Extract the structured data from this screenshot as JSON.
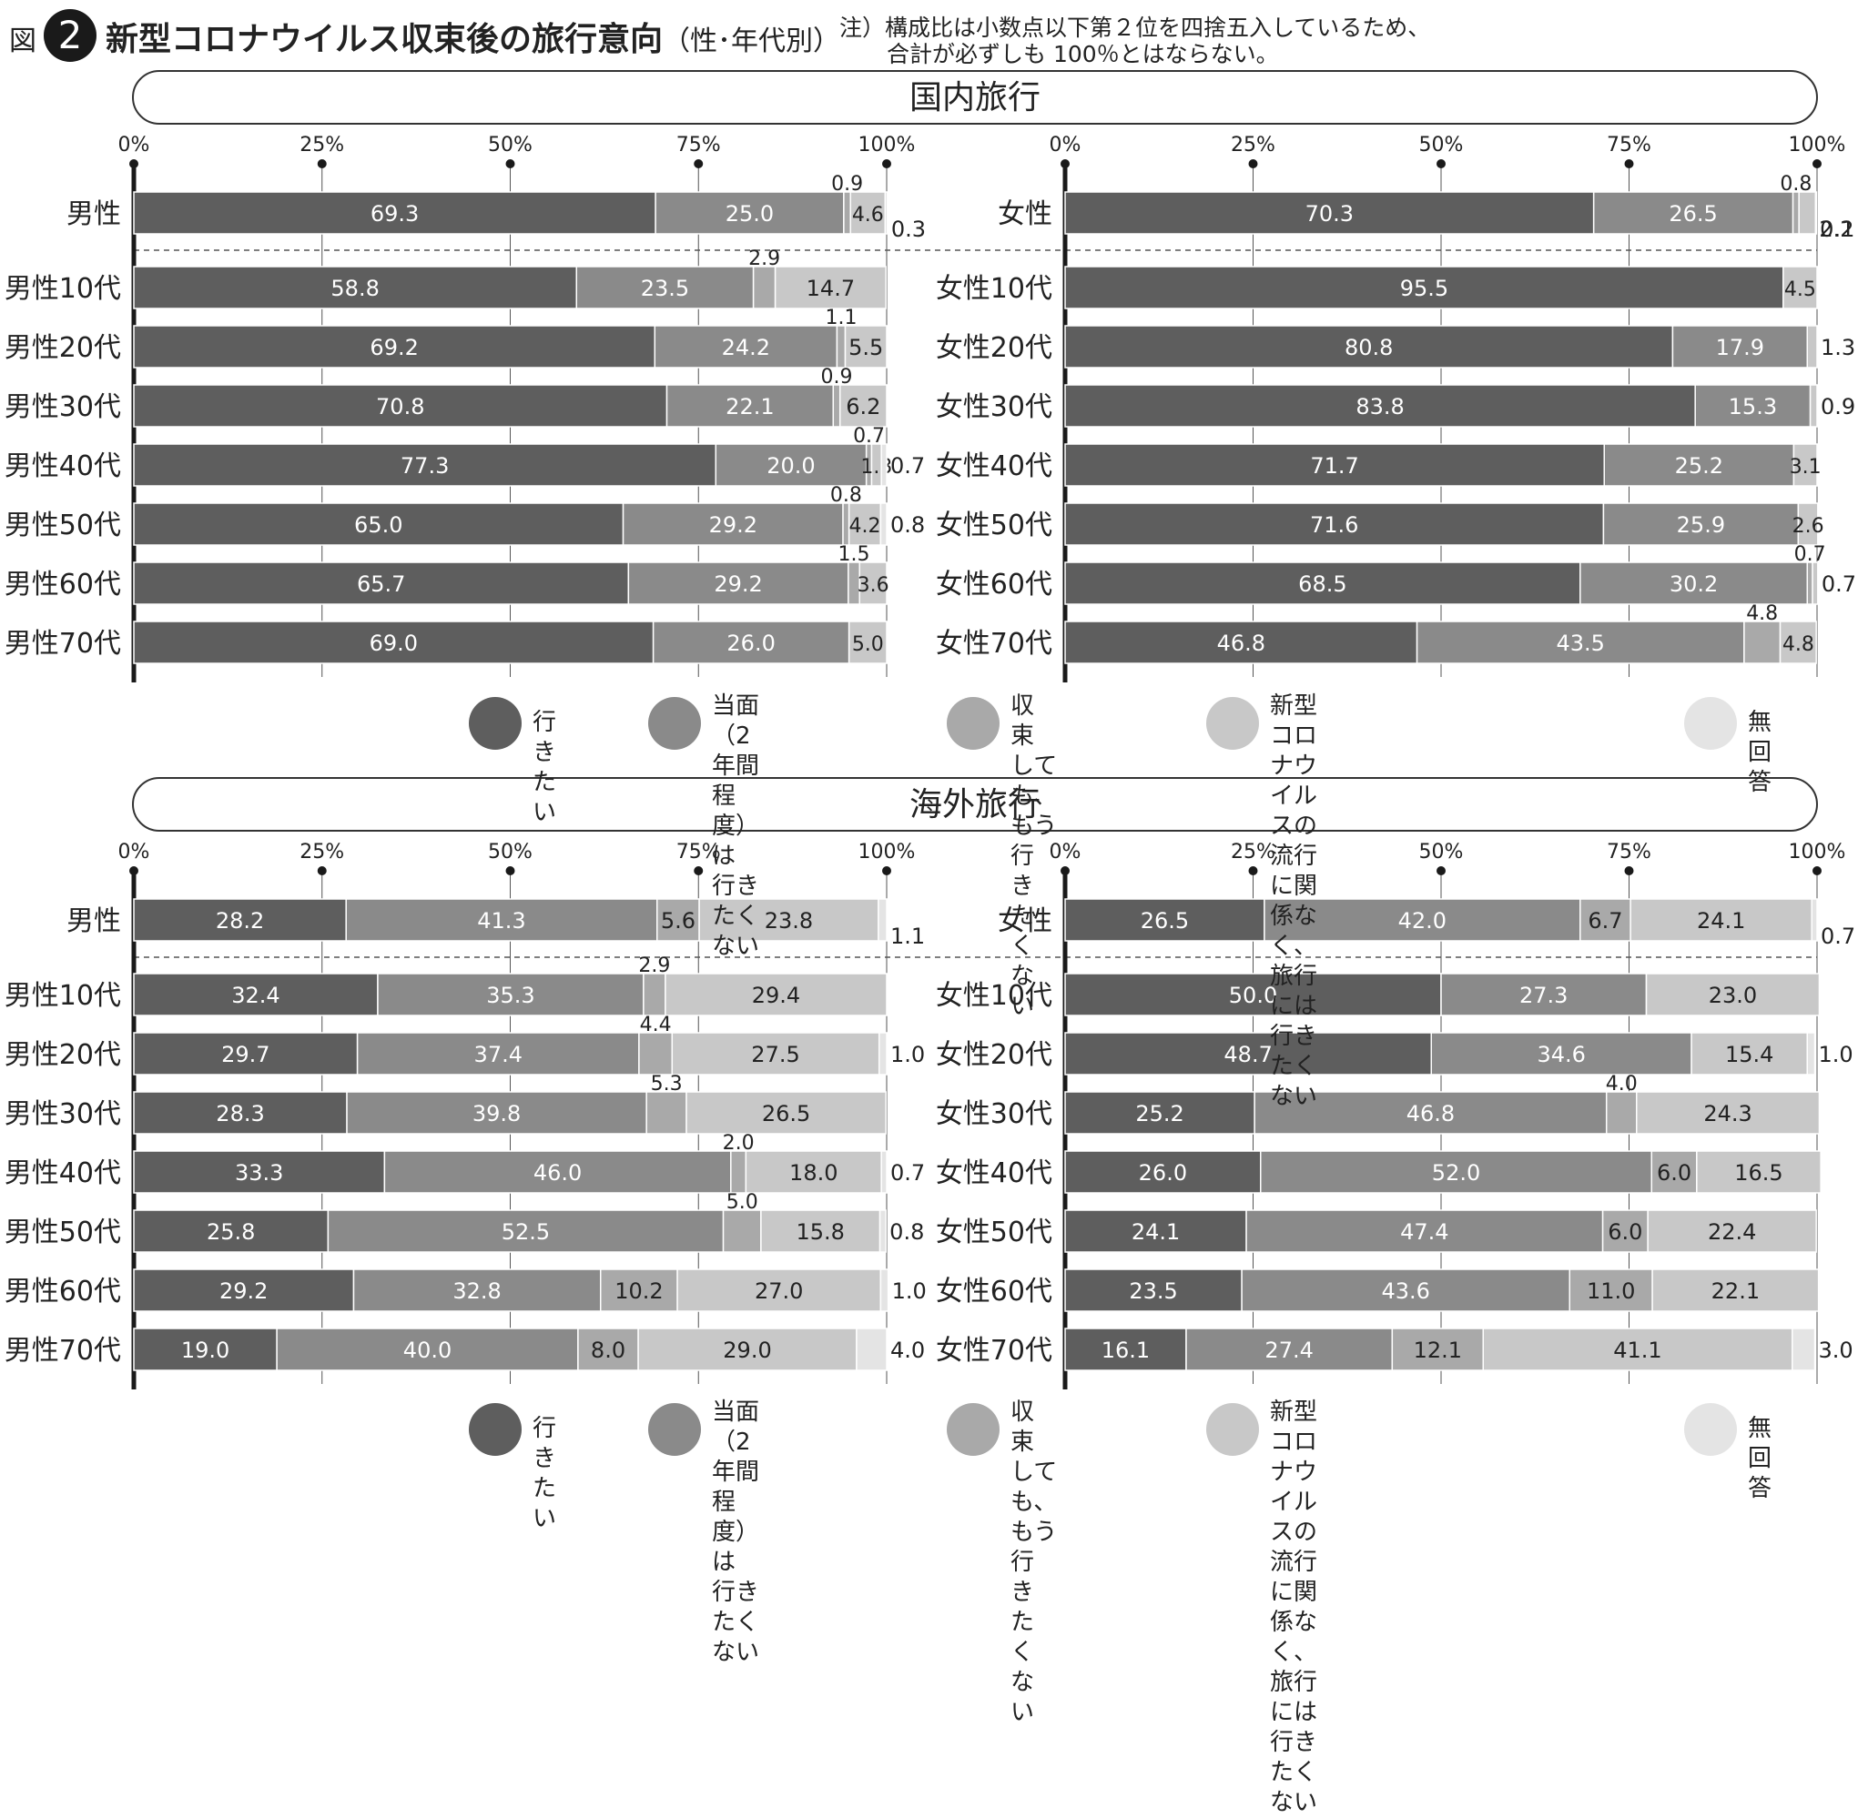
{
  "header": {
    "fig_label": "図",
    "fig_number": "2",
    "title": "新型コロナウイルス収束後の旅行意向",
    "title_sub": "（性･年代別）",
    "note_line1": "注）構成比は小数点以下第２位を四捨五入しているため、",
    "note_line2": "合計が必ずしも 100％とはならない。"
  },
  "legend": {
    "items": [
      {
        "label": "行きたい",
        "color": "#5e5e5e"
      },
      {
        "label": "当面（2年間程度）は\n行きたくない",
        "color": "#8a8a8a"
      },
      {
        "label": "収束しても、\nもう行きたくない",
        "color": "#a9a9a9"
      },
      {
        "label": "新型コロナウイルスの流行に関係なく、\n旅行には行きたくない",
        "color": "#c8c8c8"
      },
      {
        "label": "無回答",
        "color": "#e4e4e4"
      }
    ]
  },
  "chart_data": [
    {
      "type": "bar",
      "orientation": "horizontal",
      "stacked": true,
      "section": "国内旅行",
      "panel": "男性",
      "xlim": [
        0,
        100
      ],
      "ticks": [
        "0%",
        "25%",
        "50%",
        "75%",
        "100%"
      ],
      "categories": [
        "男性",
        "男性10代",
        "男性20代",
        "男性30代",
        "男性40代",
        "男性50代",
        "男性60代",
        "男性70代"
      ],
      "series": [
        {
          "name": "行きたい",
          "values": [
            69.3,
            58.8,
            69.2,
            70.8,
            77.3,
            65.0,
            65.7,
            69.0
          ]
        },
        {
          "name": "当面（2年間程度）は行きたくない",
          "values": [
            25.0,
            23.5,
            24.2,
            22.1,
            20.0,
            29.2,
            29.2,
            26.0
          ]
        },
        {
          "name": "収束しても、もう行きたくない",
          "values": [
            0.9,
            2.9,
            1.1,
            0.9,
            0.7,
            0.8,
            1.5,
            0
          ]
        },
        {
          "name": "新型コロナウイルスの流行に関係なく、旅行には行きたくない",
          "values": [
            4.6,
            14.7,
            5.5,
            6.2,
            1.3,
            4.2,
            3.6,
            5.0
          ]
        },
        {
          "name": "無回答",
          "values": [
            0.3,
            0,
            0,
            0,
            0.7,
            0.8,
            0,
            0
          ]
        }
      ],
      "labels": [
        [
          "69.3",
          "25.0",
          "0.9",
          "4.6",
          "0.3"
        ],
        [
          "58.8",
          "23.5",
          "2.9",
          "14.7",
          ""
        ],
        [
          "69.2",
          "24.2",
          "1.1",
          "5.5",
          ""
        ],
        [
          "70.8",
          "22.1",
          "0.9",
          "6.2",
          ""
        ],
        [
          "77.3",
          "20.0",
          "0.7",
          "1.3",
          "0.7"
        ],
        [
          "65.0",
          "29.2",
          "0.8",
          "4.2",
          "0.8"
        ],
        [
          "65.7",
          "29.2",
          "1.5",
          "3.6",
          ""
        ],
        [
          "69.0",
          "26.0",
          "",
          "5.0",
          ""
        ]
      ]
    },
    {
      "type": "bar",
      "orientation": "horizontal",
      "stacked": true,
      "section": "国内旅行",
      "panel": "女性",
      "xlim": [
        0,
        100
      ],
      "ticks": [
        "0%",
        "25%",
        "50%",
        "75%",
        "100%"
      ],
      "categories": [
        "女性",
        "女性10代",
        "女性20代",
        "女性30代",
        "女性40代",
        "女性50代",
        "女性60代",
        "女性70代"
      ],
      "series": [
        {
          "name": "行きたい",
          "values": [
            70.3,
            95.5,
            80.8,
            83.8,
            71.7,
            71.6,
            68.5,
            46.8
          ]
        },
        {
          "name": "当面（2年間程度）は行きたくない",
          "values": [
            26.5,
            0,
            17.9,
            15.3,
            25.2,
            25.9,
            30.2,
            43.5
          ]
        },
        {
          "name": "収束しても、もう行きたくない",
          "values": [
            0.8,
            0,
            0,
            0,
            0,
            0,
            0.7,
            4.8
          ]
        },
        {
          "name": "新型コロナウイルスの流行に関係なく、旅行には行きたくない",
          "values": [
            2.2,
            4.5,
            1.3,
            0.9,
            3.1,
            2.6,
            0.7,
            4.8
          ]
        },
        {
          "name": "無回答",
          "values": [
            0.1,
            0,
            0,
            0,
            0,
            0,
            0,
            0
          ]
        }
      ],
      "labels": [
        [
          "70.3",
          "26.5",
          "0.8",
          "2.2",
          "0.1"
        ],
        [
          "95.5",
          "",
          "",
          "4.5",
          ""
        ],
        [
          "80.8",
          "17.9",
          "",
          "1.3",
          ""
        ],
        [
          "83.8",
          "15.3",
          "",
          "0.9",
          ""
        ],
        [
          "71.7",
          "25.2",
          "",
          "3.1",
          ""
        ],
        [
          "71.6",
          "25.9",
          "",
          "2.6",
          ""
        ],
        [
          "68.5",
          "30.2",
          "0.7",
          "0.7",
          ""
        ],
        [
          "46.8",
          "43.5",
          "4.8",
          "4.8",
          ""
        ]
      ]
    },
    {
      "type": "bar",
      "orientation": "horizontal",
      "stacked": true,
      "section": "海外旅行",
      "panel": "男性",
      "xlim": [
        0,
        100
      ],
      "ticks": [
        "0%",
        "25%",
        "50%",
        "75%",
        "100%"
      ],
      "categories": [
        "男性",
        "男性10代",
        "男性20代",
        "男性30代",
        "男性40代",
        "男性50代",
        "男性60代",
        "男性70代"
      ],
      "series": [
        {
          "name": "行きたい",
          "values": [
            28.2,
            32.4,
            29.7,
            28.3,
            33.3,
            25.8,
            29.2,
            19.0
          ]
        },
        {
          "name": "当面（2年間程度）は行きたくない",
          "values": [
            41.3,
            35.3,
            37.4,
            39.8,
            46.0,
            52.5,
            32.8,
            40.0
          ]
        },
        {
          "name": "収束しても、もう行きたくない",
          "values": [
            5.6,
            2.9,
            4.4,
            5.3,
            2.0,
            5.0,
            10.2,
            8.0
          ]
        },
        {
          "name": "新型コロナウイルスの流行に関係なく、旅行には行きたくない",
          "values": [
            23.8,
            29.4,
            27.5,
            26.5,
            18.0,
            15.8,
            27.0,
            29.0
          ]
        },
        {
          "name": "無回答",
          "values": [
            1.1,
            0,
            1.0,
            0,
            0.7,
            0.8,
            1.0,
            4.0
          ]
        }
      ],
      "labels": [
        [
          "28.2",
          "41.3",
          "5.6",
          "23.8",
          "1.1"
        ],
        [
          "32.4",
          "35.3",
          "2.9",
          "29.4",
          ""
        ],
        [
          "29.7",
          "37.4",
          "4.4",
          "27.5",
          "1.0"
        ],
        [
          "28.3",
          "39.8",
          "5.3",
          "26.5",
          ""
        ],
        [
          "33.3",
          "46.0",
          "2.0",
          "18.0",
          "0.7"
        ],
        [
          "25.8",
          "52.5",
          "5.0",
          "15.8",
          "0.8"
        ],
        [
          "29.2",
          "32.8",
          "10.2",
          "27.0",
          "1.0"
        ],
        [
          "19.0",
          "40.0",
          "8.0",
          "29.0",
          "4.0"
        ]
      ]
    },
    {
      "type": "bar",
      "orientation": "horizontal",
      "stacked": true,
      "section": "海外旅行",
      "panel": "女性",
      "xlim": [
        0,
        100
      ],
      "ticks": [
        "0%",
        "25%",
        "50%",
        "75%",
        "100%"
      ],
      "categories": [
        "女性",
        "女性10代",
        "女性20代",
        "女性30代",
        "女性40代",
        "女性50代",
        "女性60代",
        "女性70代"
      ],
      "series": [
        {
          "name": "行きたい",
          "values": [
            26.5,
            50.0,
            48.7,
            25.2,
            26.0,
            24.1,
            23.5,
            16.1
          ]
        },
        {
          "name": "当面（2年間程度）は行きたくない",
          "values": [
            42.0,
            27.3,
            34.6,
            46.8,
            52.0,
            47.4,
            43.6,
            27.4
          ]
        },
        {
          "name": "収束しても、もう行きたくない",
          "values": [
            6.7,
            0,
            0,
            4.0,
            6.0,
            6.0,
            11.0,
            12.1
          ]
        },
        {
          "name": "新型コロナウイルスの流行に関係なく、旅行には行きたくない",
          "values": [
            24.1,
            23.0,
            15.4,
            24.3,
            16.5,
            22.4,
            22.1,
            41.1
          ]
        },
        {
          "name": "無回答",
          "values": [
            0.7,
            0,
            1.0,
            0,
            0,
            0,
            0,
            3.0
          ]
        }
      ],
      "labels": [
        [
          "26.5",
          "42.0",
          "6.7",
          "24.1",
          "0.7"
        ],
        [
          "50.0",
          "27.3",
          "",
          "23.0",
          ""
        ],
        [
          "48.7",
          "34.6",
          "",
          "15.4",
          "1.0"
        ],
        [
          "25.2",
          "46.8",
          "4.0",
          "24.3",
          ""
        ],
        [
          "26.0",
          "52.0",
          "6.0",
          "16.5",
          ""
        ],
        [
          "24.1",
          "47.4",
          "6.0",
          "22.4",
          ""
        ],
        [
          "23.5",
          "43.6",
          "11.0",
          "22.1",
          ""
        ],
        [
          "16.1",
          "27.4",
          "12.1",
          "41.1",
          "3.0"
        ]
      ]
    }
  ]
}
